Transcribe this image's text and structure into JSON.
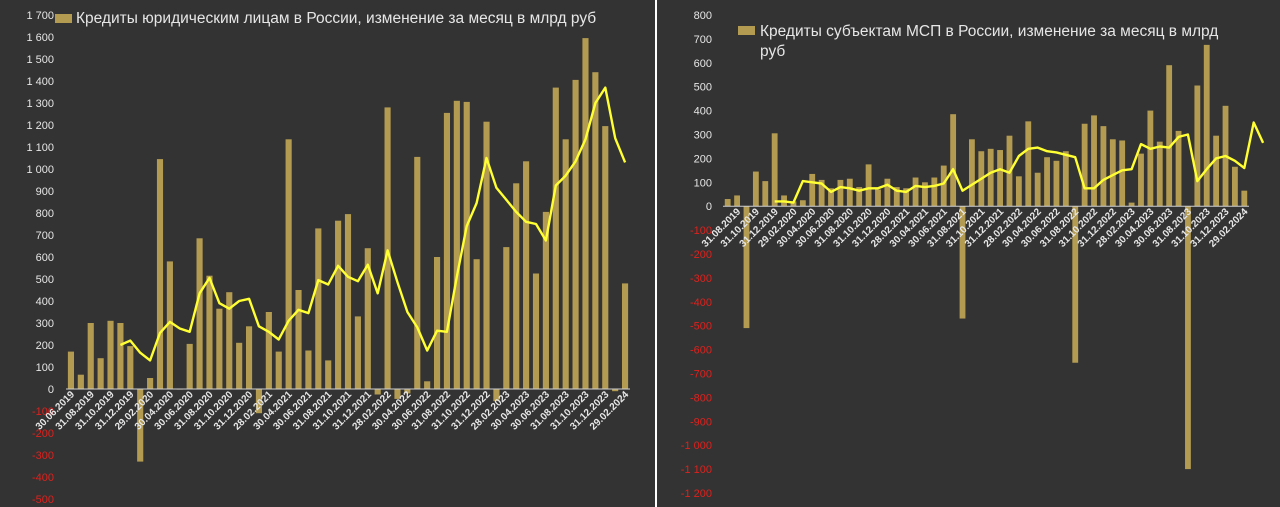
{
  "colors": {
    "background": "#333333",
    "bar": "#b39b52",
    "line": "#ffff33",
    "axis_text": "#e6e6e6",
    "negative_tick": "#e0201c",
    "zero_line": "#cfcfcf"
  },
  "chart_data": [
    {
      "type": "bar",
      "title": "Кредиты юридическим лицам в России, изменение за месяц в млрд руб",
      "legend_position": "top-left",
      "grid": false,
      "ylim": [
        -500,
        1700
      ],
      "ytick_step": 100,
      "xtick_labels": [
        "30.06.2019",
        "31.08.2019",
        "31.10.2019",
        "31.12.2019",
        "29.02.2020",
        "30.04.2020",
        "30.06.2020",
        "31.08.2020",
        "31.10.2020",
        "31.12.2020",
        "28.02.2021",
        "30.04.2021",
        "30.06.2021",
        "31.08.2021",
        "31.10.2021",
        "31.12.2021",
        "28.02.2022",
        "30.04.2022",
        "30.06.2022",
        "31.08.2022",
        "31.10.2022",
        "31.12.2022",
        "28.02.2023",
        "30.04.2023",
        "30.06.2023",
        "31.08.2023",
        "31.10.2023",
        "31.12.2023",
        "29.02.2024"
      ],
      "series": [
        {
          "name": "Кредиты юридическим лицам в России, изменение за месяц в млрд руб",
          "kind": "bar",
          "values": [
            170,
            65,
            300,
            140,
            310,
            300,
            195,
            -330,
            50,
            1045,
            580,
            0,
            205,
            685,
            515,
            365,
            440,
            210,
            285,
            -110,
            350,
            170,
            1135,
            450,
            175,
            730,
            130,
            765,
            795,
            330,
            640,
            -25,
            1280,
            -45,
            -20,
            1055,
            35,
            600,
            1255,
            1310,
            1305,
            590,
            1215,
            -55,
            645,
            935,
            1035,
            525,
            805,
            1370,
            1135,
            1405,
            1595,
            1440,
            1195,
            -10,
            480
          ]
        },
        {
          "kind": "line",
          "values": [
            null,
            null,
            null,
            null,
            null,
            200,
            220,
            165,
            130,
            255,
            305,
            275,
            260,
            435,
            505,
            390,
            365,
            400,
            410,
            285,
            260,
            225,
            310,
            360,
            345,
            495,
            475,
            560,
            510,
            490,
            565,
            435,
            630,
            485,
            350,
            280,
            175,
            265,
            260,
            510,
            740,
            845,
            1050,
            915,
            860,
            805,
            760,
            750,
            675,
            925,
            970,
            1035,
            1135,
            1300,
            1370,
            1140,
            1030
          ]
        }
      ]
    },
    {
      "type": "bar",
      "title": "Кредиты субъектам МСП  в России, изменение за месяц в млрд руб",
      "legend_position": "top-left",
      "grid": false,
      "ylim": [
        -1200,
        800
      ],
      "ytick_step": 100,
      "xtick_labels": [
        "31.08.2019",
        "31.10.2019",
        "31.12.2019",
        "29.02.2020",
        "30.04.2020",
        "30.06.2020",
        "31.08.2020",
        "31.10.2020",
        "31.12.2020",
        "28.02.2021",
        "30.04.2021",
        "30.06.2021",
        "31.08.2021",
        "31.10.2021",
        "31.12.2021",
        "28.02.2022",
        "30.04.2022",
        "30.06.2022",
        "31.08.2022",
        "31.10.2022",
        "31.12.2022",
        "28.02.2023",
        "30.04.2023",
        "30.06.2023",
        "31.08.2023",
        "31.10.2023",
        "31.12.2023",
        "29.02.2024"
      ],
      "series": [
        {
          "name": "Кредиты субъектам МСП  в России, изменение за месяц в млрд руб",
          "kind": "bar",
          "values": [
            30,
            45,
            -510,
            145,
            105,
            305,
            45,
            20,
            25,
            135,
            110,
            75,
            110,
            115,
            80,
            175,
            70,
            115,
            80,
            75,
            120,
            100,
            120,
            170,
            385,
            -470,
            280,
            230,
            240,
            235,
            295,
            125,
            355,
            140,
            205,
            190,
            230,
            -655,
            345,
            380,
            335,
            280,
            275,
            15,
            220,
            400,
            270,
            590,
            315,
            -1100,
            505,
            675,
            295,
            420,
            165,
            65
          ]
        },
        {
          "kind": "line",
          "values": [
            null,
            null,
            null,
            null,
            null,
            20,
            20,
            15,
            105,
            100,
            95,
            60,
            80,
            75,
            65,
            75,
            75,
            90,
            65,
            60,
            85,
            80,
            85,
            95,
            155,
            65,
            90,
            115,
            140,
            155,
            140,
            210,
            240,
            245,
            230,
            225,
            215,
            205,
            75,
            75,
            110,
            130,
            150,
            155,
            260,
            240,
            250,
            245,
            290,
            300,
            105,
            155,
            200,
            210,
            190,
            160,
            350,
            265
          ]
        }
      ]
    }
  ]
}
